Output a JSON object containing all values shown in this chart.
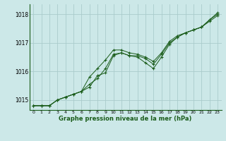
{
  "title": "Graphe pression niveau de la mer (hPa)",
  "background_color": "#cce8e8",
  "grid_color": "#aacccc",
  "line_color": "#1a5c1a",
  "xlim": [
    -0.5,
    23.5
  ],
  "ylim": [
    1014.65,
    1018.35
  ],
  "yticks": [
    1015,
    1016,
    1017,
    1018
  ],
  "xticks": [
    0,
    1,
    2,
    3,
    4,
    5,
    6,
    7,
    8,
    9,
    10,
    11,
    12,
    13,
    14,
    15,
    16,
    17,
    18,
    19,
    20,
    21,
    22,
    23
  ],
  "series1": [
    [
      0,
      1014.8
    ],
    [
      1,
      1014.8
    ],
    [
      2,
      1014.8
    ],
    [
      3,
      1015.0
    ],
    [
      4,
      1015.1
    ],
    [
      5,
      1015.2
    ],
    [
      6,
      1015.3
    ],
    [
      7,
      1015.8
    ],
    [
      8,
      1016.1
    ],
    [
      9,
      1016.4
    ],
    [
      10,
      1016.75
    ],
    [
      11,
      1016.75
    ],
    [
      12,
      1016.65
    ],
    [
      13,
      1016.6
    ],
    [
      14,
      1016.5
    ],
    [
      15,
      1016.35
    ],
    [
      16,
      1016.65
    ],
    [
      17,
      1017.05
    ],
    [
      18,
      1017.25
    ],
    [
      19,
      1017.35
    ],
    [
      20,
      1017.45
    ],
    [
      21,
      1017.55
    ],
    [
      22,
      1017.8
    ],
    [
      23,
      1018.05
    ]
  ],
  "series2": [
    [
      0,
      1014.8
    ],
    [
      1,
      1014.8
    ],
    [
      2,
      1014.8
    ],
    [
      3,
      1015.0
    ],
    [
      4,
      1015.1
    ],
    [
      5,
      1015.2
    ],
    [
      6,
      1015.3
    ],
    [
      7,
      1015.55
    ],
    [
      8,
      1015.75
    ],
    [
      9,
      1016.1
    ],
    [
      10,
      1016.6
    ],
    [
      11,
      1016.65
    ],
    [
      12,
      1016.55
    ],
    [
      13,
      1016.55
    ],
    [
      14,
      1016.45
    ],
    [
      15,
      1016.25
    ],
    [
      16,
      1016.6
    ],
    [
      17,
      1017.0
    ],
    [
      18,
      1017.2
    ],
    [
      19,
      1017.35
    ],
    [
      20,
      1017.45
    ],
    [
      21,
      1017.55
    ],
    [
      22,
      1017.8
    ],
    [
      23,
      1018.0
    ]
  ],
  "series3": [
    [
      0,
      1014.8
    ],
    [
      1,
      1014.8
    ],
    [
      2,
      1014.8
    ],
    [
      3,
      1015.0
    ],
    [
      4,
      1015.1
    ],
    [
      5,
      1015.2
    ],
    [
      6,
      1015.3
    ],
    [
      7,
      1015.45
    ],
    [
      8,
      1015.85
    ],
    [
      9,
      1015.95
    ],
    [
      10,
      1016.55
    ],
    [
      11,
      1016.65
    ],
    [
      12,
      1016.55
    ],
    [
      13,
      1016.5
    ],
    [
      14,
      1016.3
    ],
    [
      15,
      1016.1
    ],
    [
      16,
      1016.5
    ],
    [
      17,
      1016.95
    ],
    [
      18,
      1017.2
    ],
    [
      19,
      1017.35
    ],
    [
      20,
      1017.45
    ],
    [
      21,
      1017.55
    ],
    [
      22,
      1017.75
    ],
    [
      23,
      1017.95
    ]
  ]
}
